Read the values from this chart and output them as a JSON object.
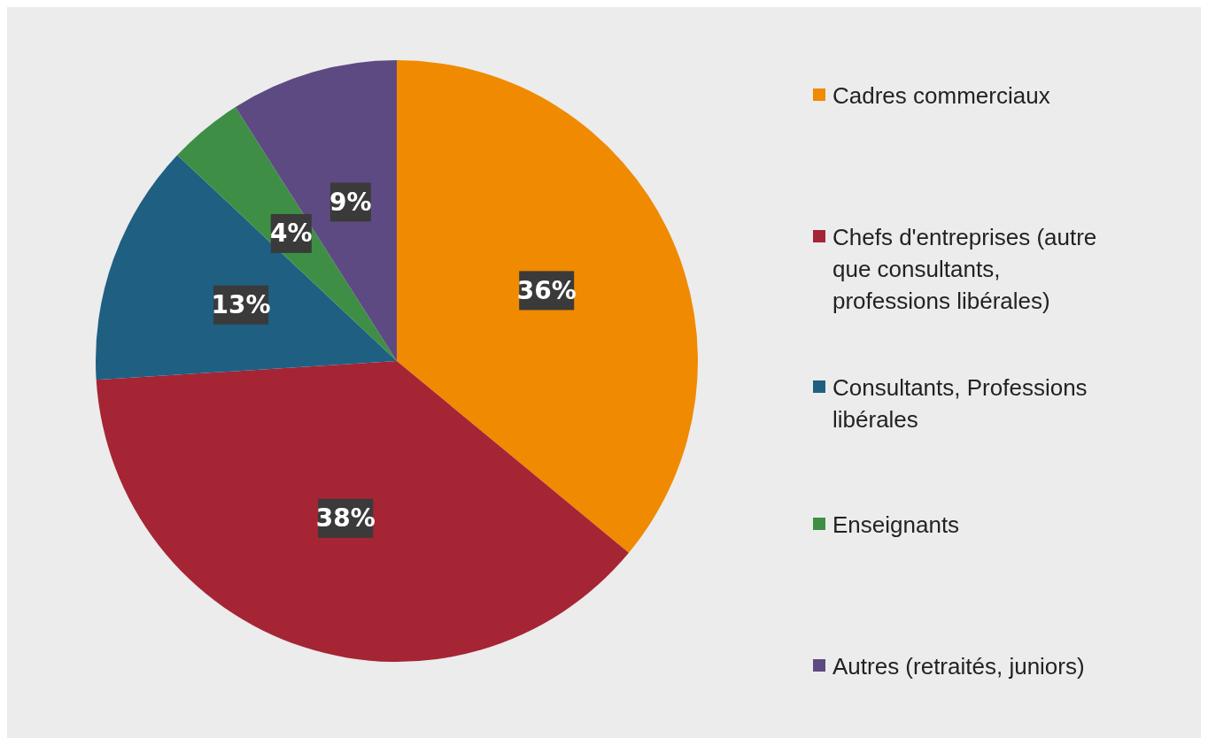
{
  "chart_data": {
    "type": "pie",
    "categories": [
      "Cadres commerciaux",
      "Chefs d'entreprises (autre que consultants, professions libérales)",
      "Consultants, Professions libérales",
      "Enseignants",
      "Autres (retraités, juniors)"
    ],
    "values": [
      36,
      38,
      13,
      4,
      9
    ],
    "colors": [
      "#f08a00",
      "#a52535",
      "#1f5f82",
      "#3e8f45",
      "#5e4a82"
    ],
    "value_labels": [
      "36%",
      "38%",
      "13%",
      "4%",
      "9%"
    ],
    "legend": "right"
  }
}
